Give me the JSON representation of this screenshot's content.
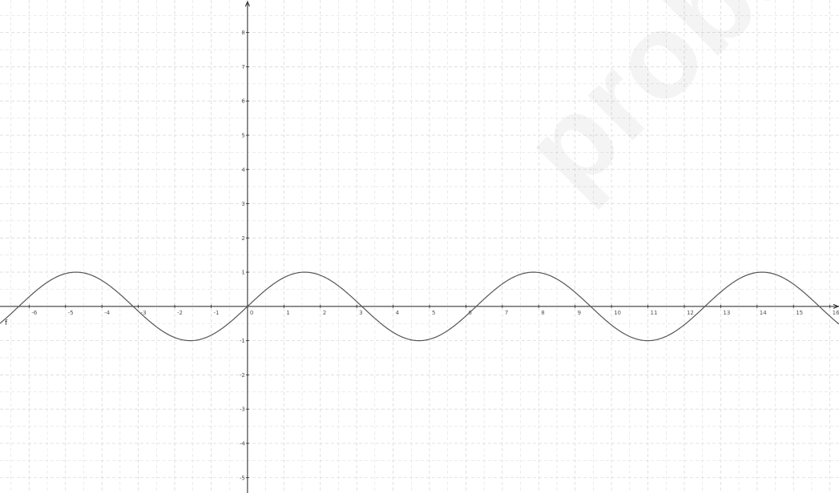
{
  "chart_data": {
    "type": "line",
    "function": "sin(x)",
    "series": [
      {
        "name": "f",
        "samples": 900
      }
    ],
    "x_ticks": [
      -6,
      -5,
      -4,
      -3,
      -2,
      -1,
      0,
      1,
      2,
      3,
      4,
      5,
      6,
      7,
      8,
      9,
      10,
      11,
      12,
      13,
      14,
      15,
      16
    ],
    "y_ticks": [
      8,
      7,
      6,
      5,
      4,
      3,
      2,
      1,
      -1,
      -2,
      -3,
      -4,
      -5
    ],
    "xlim": [
      -6.8,
      16.25
    ],
    "ylim": [
      -5.45,
      8.95
    ],
    "grid": true,
    "grid_style": "dashed",
    "colors": {
      "curve": "#555555",
      "axis": "#222222",
      "grid": "#d9d9d9"
    }
  },
  "watermark": "probar.es"
}
